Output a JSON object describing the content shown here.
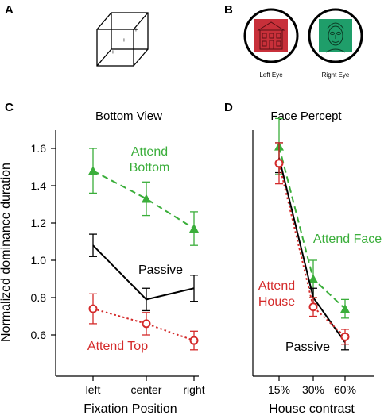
{
  "panel_labels": {
    "a": "A",
    "b": "B",
    "c": "C",
    "d": "D"
  },
  "panel_b": {
    "left_eye_label": "Left Eye",
    "right_eye_label": "Right Eye",
    "left_color": "#c8303a",
    "right_color": "#1f9e6a"
  },
  "colors": {
    "green": "#3aae3a",
    "red": "#d42a2a",
    "black": "#000000"
  },
  "chart_data": [
    {
      "type": "line",
      "title": "Bottom View",
      "xlabel": "Fixation Position",
      "ylabel": "Normalized dominance duration",
      "categories": [
        "left",
        "center",
        "right"
      ],
      "ylim": [
        0.45,
        1.75
      ],
      "yticks": [
        "0.6",
        "0.8",
        "1.0",
        "1.2",
        "1.4",
        "1.6"
      ],
      "series": [
        {
          "name": "Attend Bottom",
          "label_lines": [
            "Attend",
            "Bottom"
          ],
          "values": [
            1.48,
            1.33,
            1.17
          ],
          "errors": [
            0.12,
            0.09,
            0.09
          ],
          "color": "green",
          "marker": "triangle",
          "style": "dashed"
        },
        {
          "name": "Passive",
          "label_lines": [
            "Passive"
          ],
          "values": [
            1.08,
            0.79,
            0.85
          ],
          "errors": [
            0.06,
            0.06,
            0.07
          ],
          "color": "black",
          "marker": "none",
          "style": "solid"
        },
        {
          "name": "Attend Top",
          "label_lines": [
            "Attend Top"
          ],
          "values": [
            0.74,
            0.66,
            0.57
          ],
          "errors": [
            0.08,
            0.06,
            0.05
          ],
          "color": "red",
          "marker": "circle",
          "style": "dotted"
        }
      ]
    },
    {
      "type": "line",
      "title": "Face Percept",
      "xlabel": "House contrast",
      "ylabel": "",
      "categories": [
        "15%",
        "30%",
        "60%"
      ],
      "ylim": [
        0.45,
        1.75
      ],
      "series": [
        {
          "name": "Attend Face",
          "label_lines": [
            "Attend Face"
          ],
          "values": [
            1.61,
            0.9,
            0.74
          ],
          "errors": [
            0.15,
            0.1,
            0.05
          ],
          "color": "green",
          "marker": "triangle",
          "style": "dashed"
        },
        {
          "name": "Passive",
          "label_lines": [
            "Passive"
          ],
          "values": [
            1.55,
            0.8,
            0.56
          ],
          "errors": [
            0.08,
            0.05,
            0.04
          ],
          "color": "black",
          "marker": "none",
          "style": "solid"
        },
        {
          "name": "Attend House",
          "label_lines": [
            "Attend",
            "House"
          ],
          "values": [
            1.52,
            0.75,
            0.59
          ],
          "errors": [
            0.11,
            0.05,
            0.04
          ],
          "color": "red",
          "marker": "circle",
          "style": "dotted"
        }
      ]
    }
  ]
}
